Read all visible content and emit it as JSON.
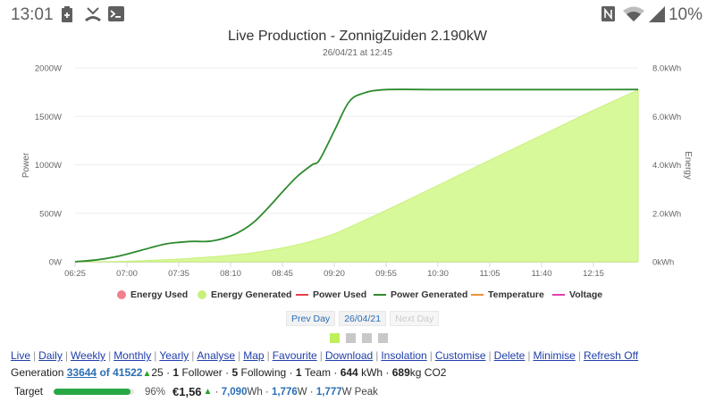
{
  "statusbar": {
    "time": "13:01",
    "left_icons": [
      "battery-charging-icon",
      "missed-call-icon",
      "terminal-icon"
    ],
    "right_icons": [
      "nfc-icon",
      "wifi-icon",
      "cell-signal-icon"
    ],
    "battery_pct": "10%"
  },
  "chart": {
    "title": "Live Production - ZonnigZuiden 2.190kW",
    "subtitle": "26/04/21 at 12:45"
  },
  "chart_data": {
    "type": "line",
    "title": "Live Production - ZonnigZuiden 2.190kW",
    "subtitle": "26/04/21 at 12:45",
    "xlabel": "",
    "ylabel": "Power",
    "y2label": "Energy",
    "x_ticks": [
      "06:25",
      "07:00",
      "07:35",
      "08:10",
      "08:45",
      "09:20",
      "09:55",
      "10:30",
      "11:05",
      "11:40",
      "12:15"
    ],
    "y_ticks": [
      "0W",
      "500W",
      "1000W",
      "1500W",
      "2000W"
    ],
    "y2_ticks": [
      "0kWh",
      "2.0kWh",
      "4.0kWh",
      "6.0kWh",
      "8.0kWh"
    ],
    "ylim": [
      0,
      2000
    ],
    "y2lim": [
      0,
      8000
    ],
    "grid": true,
    "legend_position": "bottom",
    "legend": [
      "Energy Used",
      "Energy Generated",
      "Power Used",
      "Power Generated",
      "Temperature",
      "Voltage"
    ],
    "x": [
      "06:25",
      "06:40",
      "06:55",
      "07:10",
      "07:25",
      "07:35",
      "07:45",
      "07:55",
      "08:05",
      "08:15",
      "08:25",
      "08:35",
      "08:45",
      "08:55",
      "09:05",
      "09:10",
      "09:20",
      "09:30",
      "09:40",
      "09:55",
      "10:30",
      "11:05",
      "11:40",
      "12:15",
      "12:45"
    ],
    "series": [
      {
        "name": "Power Generated",
        "axis": "left",
        "unit": "W",
        "color": "#2e8b2e",
        "values": [
          0,
          20,
          60,
          120,
          180,
          200,
          210,
          210,
          240,
          300,
          400,
          550,
          720,
          880,
          1000,
          1050,
          1350,
          1650,
          1740,
          1776,
          1776,
          1776,
          1776,
          1776,
          1777
        ]
      },
      {
        "name": "Energy Generated",
        "axis": "right",
        "unit": "Wh",
        "color": "#d8f99a",
        "values": [
          0,
          5,
          15,
          40,
          80,
          110,
          150,
          190,
          240,
          300,
          370,
          460,
          570,
          700,
          860,
          950,
          1150,
          1420,
          1700,
          2120,
          3150,
          4190,
          5220,
          6250,
          7090
        ]
      }
    ]
  },
  "legend": {
    "items": [
      {
        "label": "Energy Used",
        "color": "#f0808f",
        "shape": "dot"
      },
      {
        "label": "Energy Generated",
        "color": "#c8f07a",
        "shape": "dot"
      },
      {
        "label": "Power Used",
        "color": "#e8404a",
        "shape": "line"
      },
      {
        "label": "Power Generated",
        "color": "#2e8b2e",
        "shape": "line"
      },
      {
        "label": "Temperature",
        "color": "#f0903a",
        "shape": "line"
      },
      {
        "label": "Voltage",
        "color": "#e040b0",
        "shape": "line"
      }
    ]
  },
  "daynav": {
    "prev": "Prev Day",
    "current": "26/04/21",
    "next": "Next Day"
  },
  "pager": {
    "count": 4,
    "active": 0
  },
  "navlinks": [
    "Live",
    "Daily",
    "Weekly",
    "Monthly",
    "Yearly",
    "Analyse",
    "Map",
    "Favourite",
    "Download",
    "Insolation",
    "Customise",
    "Delete",
    "Minimise",
    "Refresh Off"
  ],
  "generation": {
    "label": "Generation",
    "rank": "33644",
    "of_label": "of 41522",
    "change": "25",
    "followers": "1",
    "followers_label": "Follower",
    "following": "5",
    "following_label": "Following",
    "teams": "1",
    "teams_label": "Team",
    "kwh": "644",
    "kwh_label": "kWh",
    "co2": "689",
    "co2_label": "kg CO2"
  },
  "target": {
    "label": "Target",
    "percent": "96%",
    "percent_value": 96,
    "money": "€1,56",
    "energy": "7,090",
    "energy_unit": "Wh",
    "power": "1,776",
    "power_unit": "W",
    "peak": "1,777",
    "peak_unit": "W Peak"
  },
  "colors": {
    "accent_link": "#1f3fa8",
    "power_generated": "#2e8b2e",
    "energy_generated_fill": "#d8f99a",
    "progress": "#27a844"
  }
}
